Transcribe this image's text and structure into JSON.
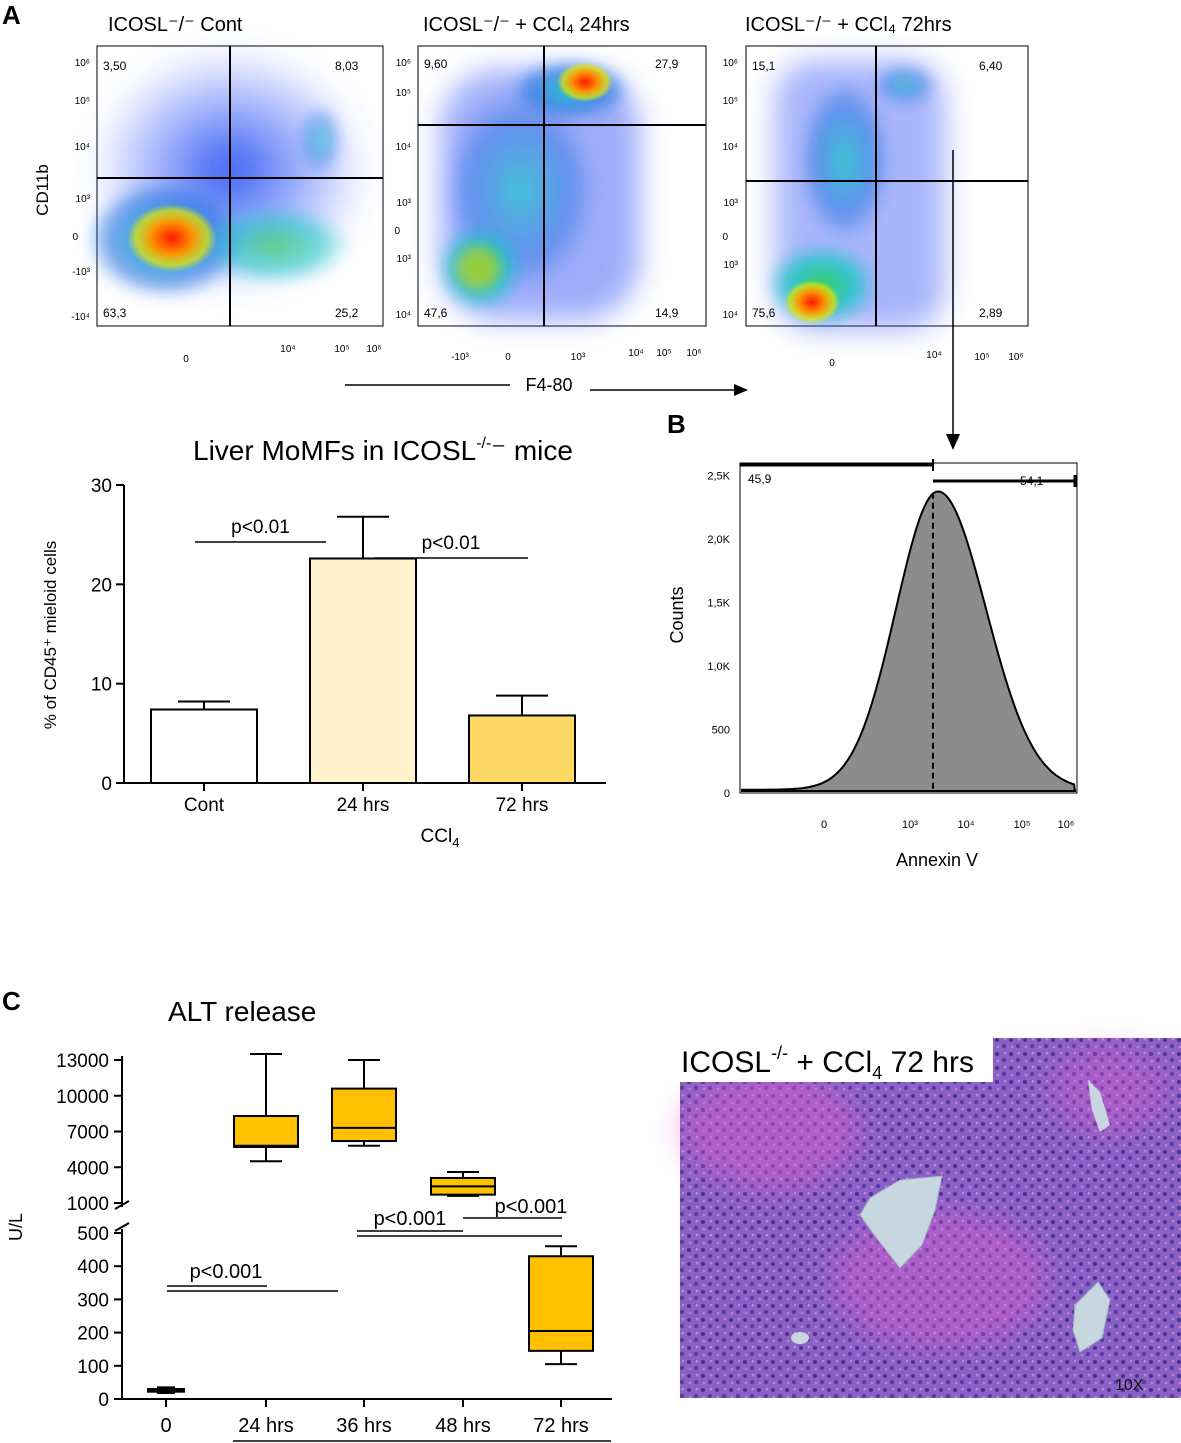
{
  "panel_labels": {
    "A": "A",
    "B": "B",
    "C": "C"
  },
  "flow": {
    "y_axis_label": "CD11b",
    "x_axis_label": "F4-80",
    "plots": [
      {
        "title": "ICOSL⁻/⁻ Cont",
        "quadrants": {
          "ul": "3,50",
          "ur": "8,03",
          "ll": "63,3",
          "lr": "25,2"
        },
        "x_ticks": [
          "0",
          "10⁴",
          "10⁵",
          "10⁶"
        ],
        "y_ticks": [
          "10⁶",
          "10⁵",
          "10⁴",
          "10³",
          "0",
          "-10³",
          "-10⁴"
        ]
      },
      {
        "title": "ICOSL⁻/⁻ + CCl₄ 24hrs",
        "quadrants": {
          "ul": "9,60",
          "ur": "27,9",
          "ll": "47,6",
          "lr": "14,9"
        },
        "x_ticks": [
          "-10³",
          "0",
          "10³",
          "10⁴",
          "10⁵",
          "10⁶"
        ],
        "y_ticks": [
          "10⁶",
          "10⁵",
          "10⁴",
          "10³",
          "0",
          "10³",
          "10⁴"
        ]
      },
      {
        "title": "ICOSL⁻/⁻ + CCl₄ 72hrs",
        "quadrants": {
          "ul": "15,1",
          "ur": "6,40",
          "ll": "75,6",
          "lr": "2,89"
        },
        "x_ticks": [
          "0",
          "10⁴",
          "10⁵",
          "10⁶"
        ],
        "y_ticks": [
          "10⁶",
          "10⁵",
          "10⁴",
          "10³",
          "0",
          "10³",
          "10⁴"
        ]
      }
    ]
  },
  "chart_data": [
    {
      "type": "bar",
      "title": "Liver MoMFs in ICOSL⁻/⁻ mice",
      "categories": [
        "Cont",
        "24 hrs",
        "72 hrs"
      ],
      "values": [
        7.4,
        22.6,
        6.8
      ],
      "errors": [
        0.8,
        4.2,
        2.0
      ],
      "colors": [
        "#ffffff",
        "#fff2cc",
        "#ffd966"
      ],
      "xlabel": "CCl₄",
      "ylabel": "% of CD45⁺  mieloid cells",
      "ylim": [
        0,
        30
      ],
      "yticks": [
        0,
        10,
        20,
        30
      ],
      "annotations": [
        {
          "text": "p<0.01",
          "from": "Cont",
          "to": "24 hrs"
        },
        {
          "text": "p<0.01",
          "from": "24 hrs",
          "to": "72 hrs"
        }
      ]
    },
    {
      "type": "histogram",
      "title": "",
      "xlabel": "Annexin V",
      "ylabel": "Counts",
      "x_ticks": [
        "0",
        "10³",
        "10⁴",
        "10⁵",
        "10⁶"
      ],
      "y_ticks": [
        "0",
        "500",
        "1,0K",
        "1,5K",
        "2,0K",
        "2,5K"
      ],
      "ylim": [
        0,
        2600
      ],
      "peak_count": 2350,
      "gates": [
        {
          "label": "45,9"
        },
        {
          "label": "54,1"
        }
      ]
    },
    {
      "type": "box",
      "title": "ALT release",
      "ylabel": "U/L",
      "categories": [
        "0",
        "24 hrs",
        "36 hrs",
        "48 hrs",
        "72 hrs"
      ],
      "boxes": [
        {
          "min": 18,
          "q1": 22,
          "median": 26,
          "q3": 30,
          "max": 35
        },
        {
          "min": 4500,
          "q1": 5700,
          "median": 5800,
          "q3": 8300,
          "max": 13500
        },
        {
          "min": 5800,
          "q1": 6200,
          "median": 7300,
          "q3": 10600,
          "max": 13000
        },
        {
          "min": 1600,
          "q1": 1700,
          "median": 2400,
          "q3": 3100,
          "max": 3600
        },
        {
          "min": 105,
          "q1": 145,
          "median": 205,
          "q3": 430,
          "max": 460
        }
      ],
      "lower_axis": {
        "ylim": [
          0,
          500
        ],
        "yticks": [
          "0",
          "100",
          "200",
          "300",
          "400",
          "500"
        ]
      },
      "upper_axis": {
        "ylim": [
          1000,
          13000
        ],
        "yticks": [
          "1000",
          "4000",
          "7000",
          "10000",
          "13000"
        ]
      },
      "box_color": "#ffc000",
      "annotations": [
        {
          "text": "p<0.001"
        },
        {
          "text": "p<0.001"
        },
        {
          "text": "p<0.001"
        }
      ]
    }
  ],
  "histology": {
    "title_part1": "ICOSL",
    "title_sup": "-/-",
    "title_part2": " + CCl",
    "title_sub": "4",
    "title_part3": " 72 hrs",
    "magnification": "10X"
  }
}
